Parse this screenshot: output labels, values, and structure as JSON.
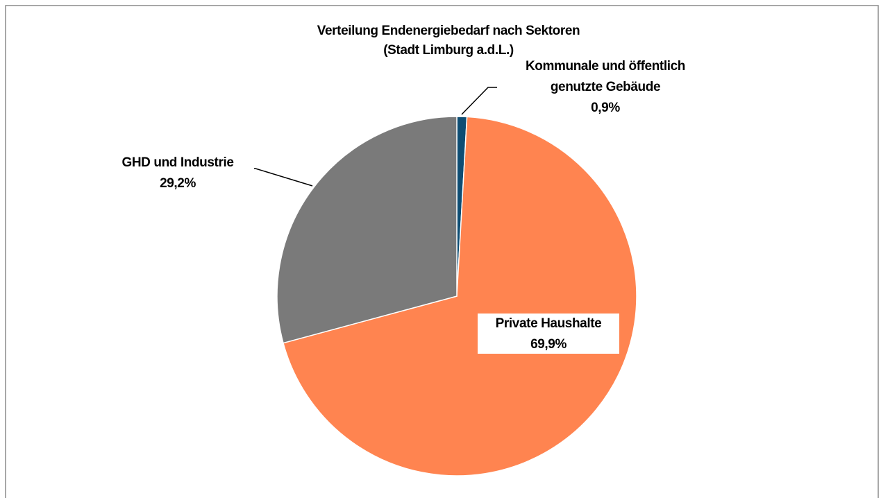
{
  "chart_data": {
    "type": "pie",
    "title": [
      "Verteilung Endenergiebedarf nach Sektoren",
      "(Stadt Limburg a.d.L.)"
    ],
    "categories": [
      "Kommunale und öffentlich genutzte Gebäude",
      "Private Haushalte",
      "GHD und Industrie"
    ],
    "values": [
      0.9,
      69.9,
      29.2
    ],
    "value_labels": [
      "0,9%",
      "69,9%",
      "29,2%"
    ],
    "colors": [
      "#0e4d73",
      "#ff8450",
      "#7a7a7a"
    ]
  }
}
